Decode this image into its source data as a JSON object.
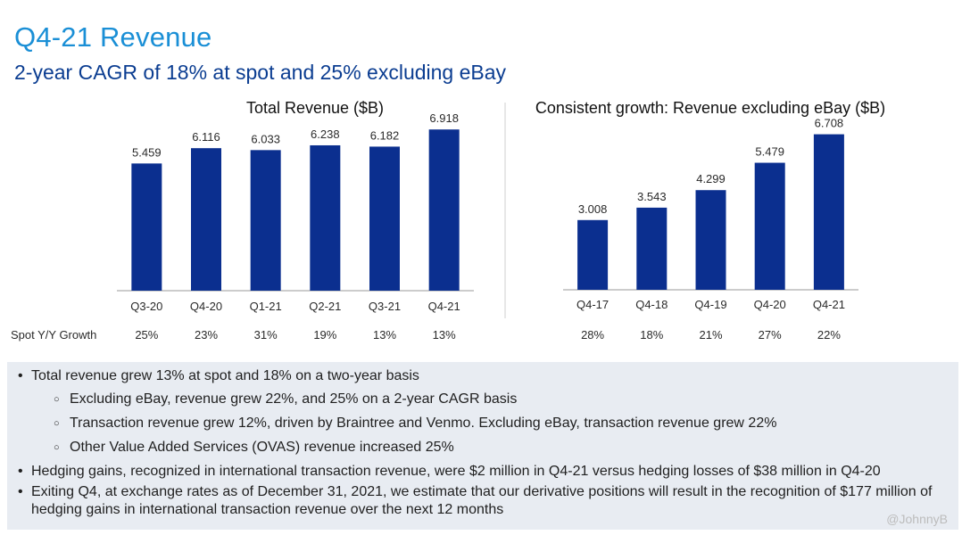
{
  "page": {
    "title": "Q4-21 Revenue",
    "subtitle": "2-year CAGR of 18% at spot and 25% excluding eBay"
  },
  "chart_data": [
    {
      "type": "bar",
      "title": "Total Revenue ($B)",
      "categories": [
        "Q3-20",
        "Q4-20",
        "Q1-21",
        "Q2-21",
        "Q3-21",
        "Q4-21"
      ],
      "values": [
        5.459,
        6.116,
        6.033,
        6.238,
        6.182,
        6.918
      ],
      "value_labels": [
        "5.459",
        "6.116",
        "6.033",
        "6.238",
        "6.182",
        "6.918"
      ],
      "growth_row_label": "Spot Y/Y Growth",
      "growth": [
        "25%",
        "23%",
        "31%",
        "19%",
        "13%",
        "13%"
      ],
      "bar_color": "#0b2f8f",
      "ylim": [
        0,
        7.5
      ]
    },
    {
      "type": "bar",
      "title": "Consistent growth: Revenue excluding eBay ($B)",
      "categories": [
        "Q4-17",
        "Q4-18",
        "Q4-19",
        "Q4-20",
        "Q4-21"
      ],
      "values": [
        3.008,
        3.543,
        4.299,
        5.479,
        6.708
      ],
      "value_labels": [
        "3.008",
        "3.543",
        "4.299",
        "5.479",
        "6.708"
      ],
      "growth": [
        "28%",
        "18%",
        "21%",
        "27%",
        "22%"
      ],
      "bar_color": "#0b2f8f",
      "ylim": [
        0,
        7.5
      ]
    }
  ],
  "bullets": {
    "b1": "Total revenue grew 13% at spot and 18% on a two-year basis",
    "s1": "Excluding eBay, revenue grew 22%, and 25% on a 2-year CAGR basis",
    "s2": "Transaction revenue grew 12%, driven by Braintree and Venmo. Excluding eBay, transaction revenue grew 22%",
    "s3": "Other Value Added Services (OVAS) revenue increased 25%",
    "b2": "Hedging gains, recognized in international transaction revenue, were $2 million in Q4-21 versus hedging losses of $38 million in Q4-20",
    "b3": "Exiting Q4, at exchange rates as of December 31, 2021, we estimate that our derivative positions will result in the recognition of $177 million of hedging gains in international transaction revenue over the next 12 months",
    "bullet_glyph": "•",
    "sub_glyph": "○"
  },
  "watermark": "@JohnnyB"
}
